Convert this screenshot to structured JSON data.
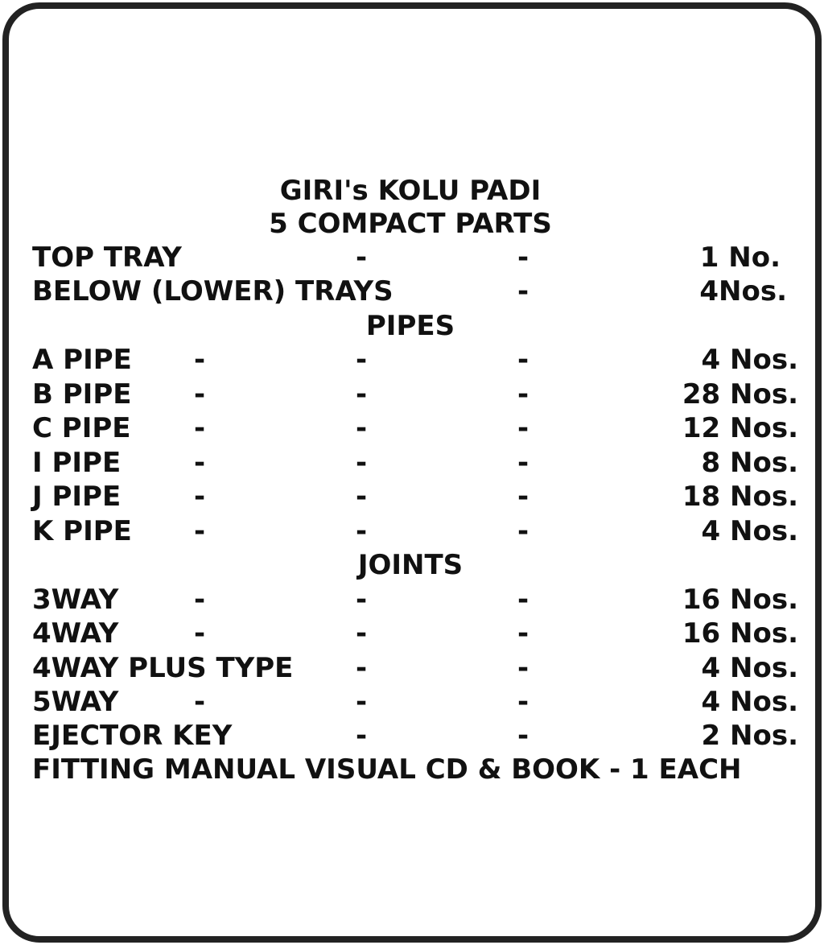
{
  "title": "GIRI's KOLU PADI",
  "subtitle": "5 COMPACT PARTS",
  "dash": "-",
  "trays": [
    {
      "label": "TOP TRAY",
      "qty": "1 No."
    },
    {
      "label": "BELOW (LOWER) TRAYS",
      "qty": "4Nos."
    }
  ],
  "pipes_heading": "PIPES",
  "pipes": [
    {
      "label": "A PIPE",
      "qty": "4 Nos."
    },
    {
      "label": "B PIPE",
      "qty": "28 Nos."
    },
    {
      "label": "C PIPE",
      "qty": "12 Nos."
    },
    {
      "label": "I PIPE",
      "qty": "8 Nos."
    },
    {
      "label": "J PIPE",
      "qty": "18 Nos."
    },
    {
      "label": "K PIPE",
      "qty": "4 Nos."
    }
  ],
  "joints_heading": "JOINTS",
  "joints": [
    {
      "label": "3WAY",
      "qty": "16 Nos."
    },
    {
      "label": "4WAY",
      "qty": "16 Nos."
    },
    {
      "label": "4WAY PLUS TYPE",
      "qty": "4 Nos."
    },
    {
      "label": "5WAY",
      "qty": "4 Nos."
    },
    {
      "label": "EJECTOR KEY",
      "qty": "2 Nos."
    }
  ],
  "footer": "FITTING MANUAL VISUAL CD & BOOK - 1 EACH"
}
